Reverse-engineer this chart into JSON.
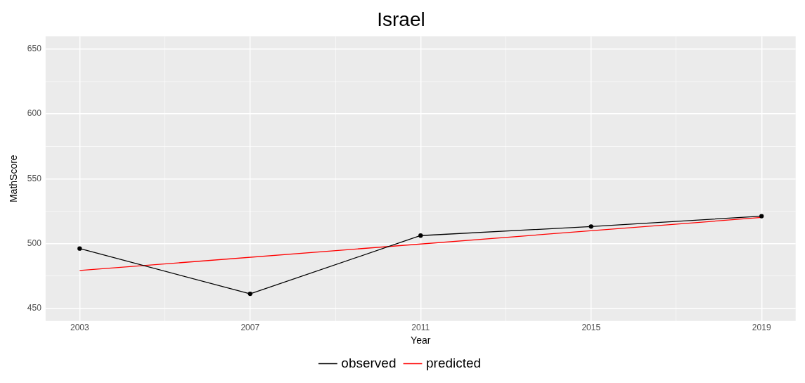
{
  "chart_data": {
    "type": "line",
    "title": "Israel",
    "xlabel": "Year",
    "ylabel": "MathScore",
    "xlim": [
      2002.2,
      2019.8
    ],
    "xticks": [
      2003,
      {
        "value": 2005,
        "label": null
      },
      2007,
      {
        "value": 2009,
        "label": null
      },
      2011,
      {
        "value": 2013,
        "label": null
      },
      2015,
      {
        "value": 2017,
        "label": null
      },
      2019
    ],
    "ylim": [
      440,
      660
    ],
    "yticks": [
      450,
      {
        "value": 475,
        "label": null
      },
      500,
      {
        "value": 525,
        "label": null
      },
      550,
      {
        "value": 575,
        "label": null
      },
      600,
      {
        "value": 625,
        "label": null
      },
      650
    ],
    "grid": true,
    "legend": "bottom",
    "series": [
      {
        "name": "observed",
        "color": "#000000",
        "x": [
          2003,
          2007,
          2011,
          2015,
          2019
        ],
        "values": [
          496,
          461,
          506,
          513,
          521
        ],
        "marker": "circle"
      },
      {
        "name": "predicted",
        "color": "#ff0000",
        "x": [
          2003,
          2019
        ],
        "values": [
          479,
          520
        ],
        "marker": "none"
      }
    ]
  }
}
